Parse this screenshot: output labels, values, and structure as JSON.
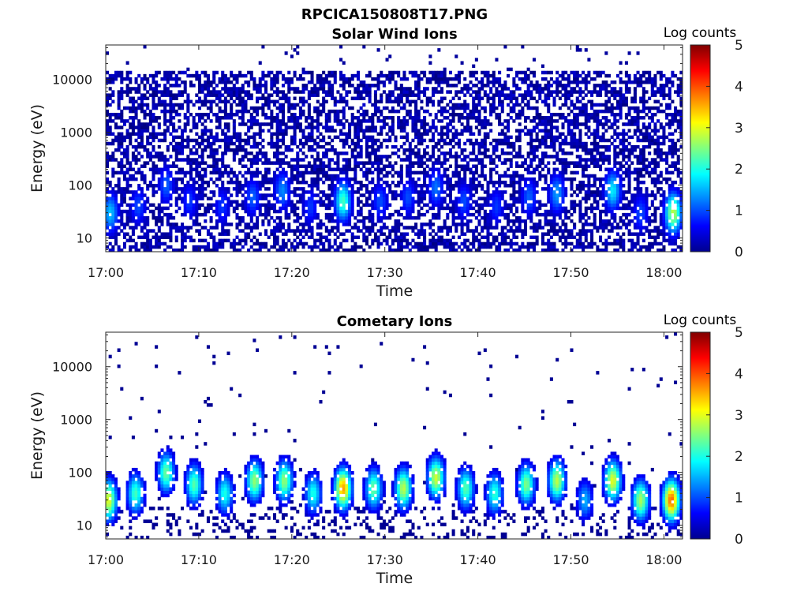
{
  "figure_title": "RPCICA150808T17.PNG",
  "chart_data": [
    {
      "type": "heatmap",
      "title": "Solar Wind Ions",
      "xlabel": "Time",
      "ylabel": "Energy (eV)",
      "x_ticks": [
        "17:00",
        "17:10",
        "17:20",
        "17:30",
        "17:40",
        "17:50",
        "18:00"
      ],
      "x_range": [
        "17:00",
        "18:02"
      ],
      "y_scale": "log",
      "y_ticks": [
        "10",
        "100",
        "1000",
        "10000"
      ],
      "y_range": [
        5.5,
        45000
      ],
      "colorbar": {
        "label": "Log counts",
        "range": [
          0,
          5
        ],
        "ticks": [
          "0",
          "1",
          "2",
          "3",
          "4",
          "5"
        ]
      },
      "features": {
        "background_level": 0.3,
        "upper_cutoff_eV": 15000,
        "bursts": [
          {
            "time_min": 0.5,
            "peak_eV": 30,
            "peak_log_counts": 1.6
          },
          {
            "time_min": 3.5,
            "peak_eV": 40,
            "peak_log_counts": 1.0
          },
          {
            "time_min": 6.5,
            "peak_eV": 100,
            "peak_log_counts": 1.1
          },
          {
            "time_min": 9.0,
            "peak_eV": 50,
            "peak_log_counts": 0.9
          },
          {
            "time_min": 12.5,
            "peak_eV": 40,
            "peak_log_counts": 0.9
          },
          {
            "time_min": 15.8,
            "peak_eV": 60,
            "peak_log_counts": 1.1
          },
          {
            "time_min": 19.0,
            "peak_eV": 80,
            "peak_log_counts": 1.3
          },
          {
            "time_min": 22.0,
            "peak_eV": 40,
            "peak_log_counts": 0.9
          },
          {
            "time_min": 25.5,
            "peak_eV": 50,
            "peak_log_counts": 2.2
          },
          {
            "time_min": 29.5,
            "peak_eV": 50,
            "peak_log_counts": 1.0
          },
          {
            "time_min": 32.5,
            "peak_eV": 60,
            "peak_log_counts": 1.0
          },
          {
            "time_min": 35.5,
            "peak_eV": 90,
            "peak_log_counts": 1.2
          },
          {
            "time_min": 38.5,
            "peak_eV": 50,
            "peak_log_counts": 1.0
          },
          {
            "time_min": 42.0,
            "peak_eV": 40,
            "peak_log_counts": 0.9
          },
          {
            "time_min": 45.5,
            "peak_eV": 60,
            "peak_log_counts": 1.1
          },
          {
            "time_min": 48.5,
            "peak_eV": 70,
            "peak_log_counts": 1.4
          },
          {
            "time_min": 54.5,
            "peak_eV": 80,
            "peak_log_counts": 1.8
          },
          {
            "time_min": 57.5,
            "peak_eV": 30,
            "peak_log_counts": 1.0
          },
          {
            "time_min": 61.0,
            "peak_eV": 30,
            "peak_log_counts": 2.8
          }
        ]
      }
    },
    {
      "type": "heatmap",
      "title": "Cometary Ions",
      "xlabel": "Time",
      "ylabel": "Energy (eV)",
      "x_ticks": [
        "17:00",
        "17:10",
        "17:20",
        "17:30",
        "17:40",
        "17:50",
        "18:00"
      ],
      "x_range": [
        "17:00",
        "18:02"
      ],
      "y_scale": "log",
      "y_ticks": [
        "10",
        "100",
        "1000",
        "10000"
      ],
      "y_range": [
        5.5,
        45000
      ],
      "colorbar": {
        "label": "Log counts",
        "range": [
          0,
          5
        ],
        "ticks": [
          "0",
          "1",
          "2",
          "3",
          "4",
          "5"
        ]
      },
      "features": {
        "background_level": 0.05,
        "bursts": [
          {
            "time_min": 0.3,
            "peak_eV": 30,
            "peak_log_counts": 3.0
          },
          {
            "time_min": 3.2,
            "peak_eV": 40,
            "peak_log_counts": 2.2
          },
          {
            "time_min": 6.5,
            "peak_eV": 100,
            "peak_log_counts": 2.4
          },
          {
            "time_min": 9.5,
            "peak_eV": 60,
            "peak_log_counts": 2.3
          },
          {
            "time_min": 12.8,
            "peak_eV": 40,
            "peak_log_counts": 2.0
          },
          {
            "time_min": 16.0,
            "peak_eV": 70,
            "peak_log_counts": 2.6
          },
          {
            "time_min": 19.2,
            "peak_eV": 70,
            "peak_log_counts": 2.6
          },
          {
            "time_min": 22.3,
            "peak_eV": 40,
            "peak_log_counts": 2.0
          },
          {
            "time_min": 25.5,
            "peak_eV": 50,
            "peak_log_counts": 3.6
          },
          {
            "time_min": 28.8,
            "peak_eV": 50,
            "peak_log_counts": 2.4
          },
          {
            "time_min": 32.0,
            "peak_eV": 50,
            "peak_log_counts": 2.8
          },
          {
            "time_min": 35.5,
            "peak_eV": 80,
            "peak_log_counts": 2.9
          },
          {
            "time_min": 38.7,
            "peak_eV": 50,
            "peak_log_counts": 2.3
          },
          {
            "time_min": 41.8,
            "peak_eV": 40,
            "peak_log_counts": 2.1
          },
          {
            "time_min": 45.2,
            "peak_eV": 60,
            "peak_log_counts": 2.5
          },
          {
            "time_min": 48.5,
            "peak_eV": 70,
            "peak_log_counts": 2.8
          },
          {
            "time_min": 51.5,
            "peak_eV": 30,
            "peak_log_counts": 1.5
          },
          {
            "time_min": 54.5,
            "peak_eV": 70,
            "peak_log_counts": 3.0
          },
          {
            "time_min": 57.5,
            "peak_eV": 30,
            "peak_log_counts": 2.7
          },
          {
            "time_min": 60.8,
            "peak_eV": 30,
            "peak_log_counts": 3.9
          }
        ]
      }
    }
  ]
}
